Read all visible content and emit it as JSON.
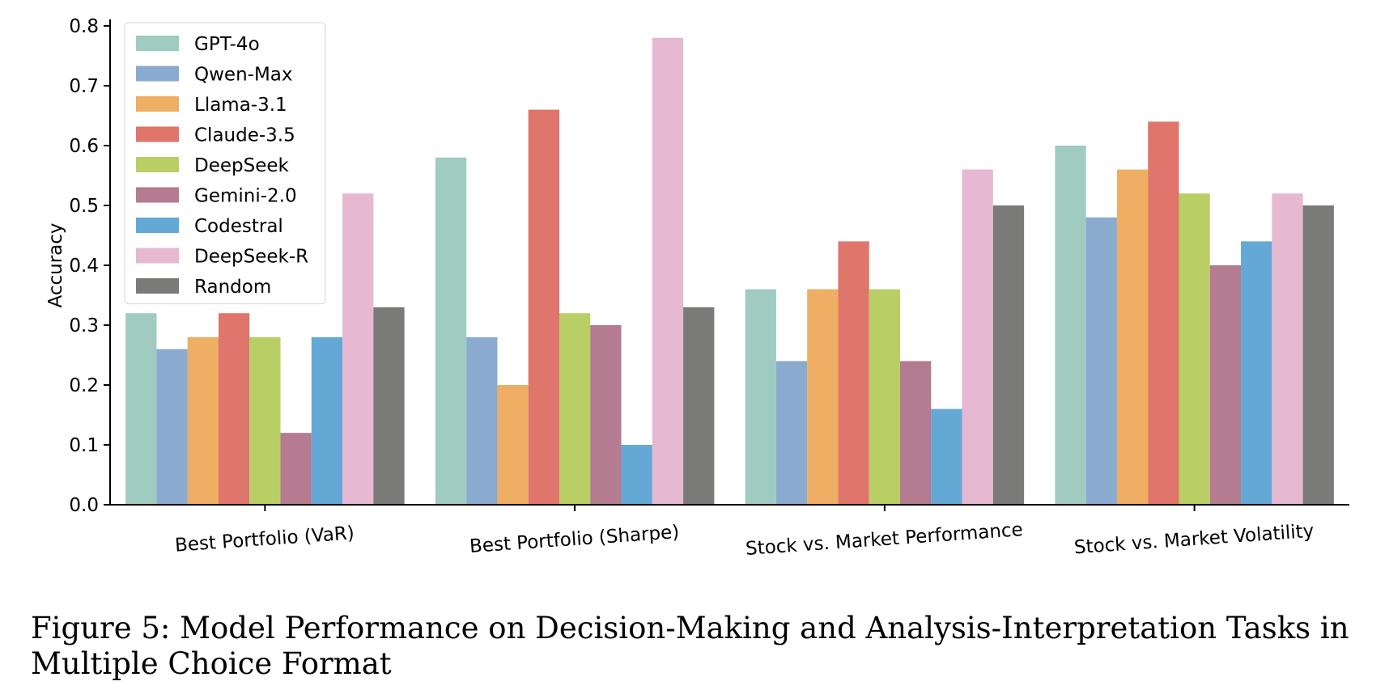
{
  "chart_data": {
    "type": "bar",
    "ylabel": "Accuracy",
    "ylim": [
      0,
      0.8
    ],
    "yticks": [
      0.0,
      0.1,
      0.2,
      0.3,
      0.4,
      0.5,
      0.6,
      0.7,
      0.8
    ],
    "legend_position": "top-left",
    "grid": false,
    "categories": [
      "Best Portfolio (VaR)",
      "Best Portfolio (Sharpe)",
      "Stock vs. Market Performance",
      "Stock vs. Market Volatility"
    ],
    "series": [
      {
        "name": "GPT-4o",
        "color": "#9fcbc1",
        "values": [
          0.32,
          0.58,
          0.36,
          0.6
        ]
      },
      {
        "name": "Qwen-Max",
        "color": "#8aaad0",
        "values": [
          0.26,
          0.28,
          0.24,
          0.48
        ]
      },
      {
        "name": "Llama-3.1",
        "color": "#eeae63",
        "values": [
          0.28,
          0.2,
          0.36,
          0.56
        ]
      },
      {
        "name": "Claude-3.5",
        "color": "#df756b",
        "values": [
          0.32,
          0.66,
          0.44,
          0.64
        ]
      },
      {
        "name": "DeepSeek",
        "color": "#b9cf66",
        "values": [
          0.28,
          0.32,
          0.36,
          0.52
        ]
      },
      {
        "name": "Gemini-2.0",
        "color": "#b47b91",
        "values": [
          0.12,
          0.3,
          0.24,
          0.4
        ]
      },
      {
        "name": "Codestral",
        "color": "#64a8d6",
        "values": [
          0.28,
          0.1,
          0.16,
          0.44
        ]
      },
      {
        "name": "DeepSeek-R",
        "color": "#e7b8d2",
        "values": [
          0.52,
          0.78,
          0.56,
          0.52
        ]
      },
      {
        "name": "Random",
        "color": "#7a7a78",
        "values": [
          0.33,
          0.33,
          0.5,
          0.5
        ]
      }
    ]
  },
  "caption": "Figure 5: Model Performance on Decision-Making and Analysis-Interpretation Tasks in Multiple Choice Format"
}
